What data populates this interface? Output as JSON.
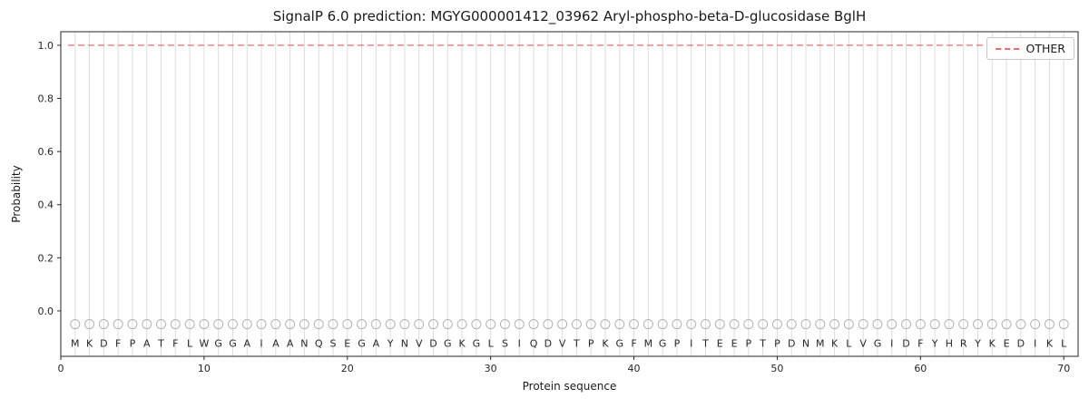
{
  "figure": {
    "title": "SignalP 6.0 prediction: MGYG000001412_03962 Aryl-phospho-beta-D-glucosidase BglH",
    "xlabel": "Protein sequence",
    "ylabel": "Probability",
    "legend": {
      "label": "OTHER"
    }
  },
  "chart_data": {
    "type": "line",
    "title": "SignalP 6.0 prediction: MGYG000001412_03962 Aryl-phospho-beta-D-glucosidase BglH",
    "xlabel": "Protein sequence",
    "ylabel": "Probability",
    "xlim": [
      0,
      71
    ],
    "ylim": [
      -0.171,
      1.051
    ],
    "x_ticks": [
      0,
      10,
      20,
      30,
      40,
      50,
      60,
      70
    ],
    "y_ticks": [
      "0.0",
      "0.2",
      "0.4",
      "0.6",
      "0.8",
      "1.0"
    ],
    "grid": "vertical-line-per-residue",
    "legend_position": "upper right",
    "series": [
      {
        "name": "OTHER",
        "style": "dashed",
        "color": "#ee6b6b",
        "x_range": [
          1,
          70
        ],
        "constant_value": 1.0
      }
    ],
    "sequence": [
      "M",
      "K",
      "D",
      "F",
      "P",
      "A",
      "T",
      "F",
      "L",
      "W",
      "G",
      "G",
      "A",
      "I",
      "A",
      "A",
      "N",
      "Q",
      "S",
      "E",
      "G",
      "A",
      "Y",
      "N",
      "V",
      "D",
      "G",
      "K",
      "G",
      "L",
      "S",
      "I",
      "Q",
      "D",
      "V",
      "T",
      "P",
      "K",
      "G",
      "F",
      "M",
      "G",
      "P",
      "I",
      "T",
      "E",
      "E",
      "P",
      "T",
      "P",
      "D",
      "N",
      "M",
      "K",
      "L",
      "V",
      "G",
      "I",
      "D",
      "F",
      "Y",
      "H",
      "R",
      "Y",
      "K",
      "E",
      "D",
      "I",
      "K",
      "L"
    ],
    "marker_row_y": -0.05,
    "letter_row_y": -0.122,
    "colors": {
      "grid": "#dcdcdc",
      "marker": "#b3b3b3",
      "axis": "#262626",
      "text": "#262626"
    }
  }
}
